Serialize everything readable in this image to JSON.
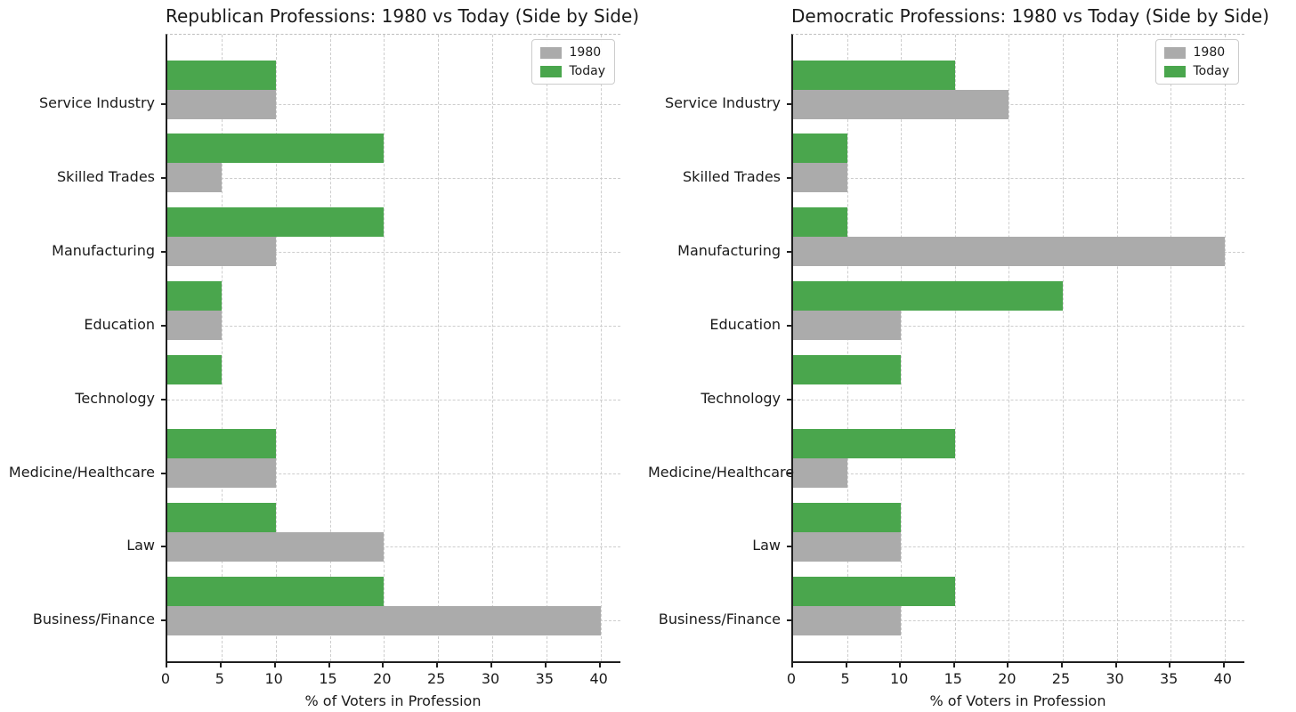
{
  "figure": {
    "background": "#ffffff"
  },
  "colors": {
    "bar_1980": "#ababab",
    "bar_today": "#4aa64d",
    "grid": "#cdcdcd",
    "spine": "#1f1f1f",
    "text": "#1a1a1a",
    "legend_border": "#cccccc"
  },
  "legend": {
    "position": "upper right",
    "items": [
      {
        "label": "1980",
        "color_key": "bar_1980"
      },
      {
        "label": "Today",
        "color_key": "bar_today"
      }
    ]
  },
  "chart_data": [
    {
      "type": "bar",
      "orientation": "horizontal",
      "title": "Republican Professions: 1980 vs Today (Side by Side)",
      "xlabel": "% of Voters in Profession",
      "ylabel": "",
      "categories": [
        "Service Industry",
        "Skilled Trades",
        "Manufacturing",
        "Education",
        "Technology",
        "Medicine/Healthcare",
        "Law",
        "Business/Finance"
      ],
      "series": [
        {
          "name": "1980",
          "values": [
            10,
            5,
            10,
            5,
            0,
            10,
            20,
            40
          ]
        },
        {
          "name": "Today",
          "values": [
            10,
            20,
            20,
            5,
            5,
            10,
            10,
            20
          ]
        }
      ],
      "x_ticks": [
        0,
        5,
        10,
        15,
        20,
        25,
        30,
        35,
        40
      ],
      "xlim": [
        0,
        42
      ],
      "grid": "dashed, both axes",
      "legend_position": "upper right"
    },
    {
      "type": "bar",
      "orientation": "horizontal",
      "title": "Democratic Professions: 1980 vs Today (Side by Side)",
      "xlabel": "% of Voters in Profession",
      "ylabel": "",
      "categories": [
        "Service Industry",
        "Skilled Trades",
        "Manufacturing",
        "Education",
        "Technology",
        "Medicine/Healthcare",
        "Law",
        "Business/Finance"
      ],
      "series": [
        {
          "name": "1980",
          "values": [
            20,
            5,
            40,
            10,
            0,
            5,
            10,
            10
          ]
        },
        {
          "name": "Today",
          "values": [
            15,
            5,
            5,
            25,
            10,
            15,
            10,
            15
          ]
        }
      ],
      "x_ticks": [
        0,
        5,
        10,
        15,
        20,
        25,
        30,
        35,
        40
      ],
      "xlim": [
        0,
        42
      ],
      "grid": "dashed, both axes",
      "legend_position": "upper right"
    }
  ]
}
